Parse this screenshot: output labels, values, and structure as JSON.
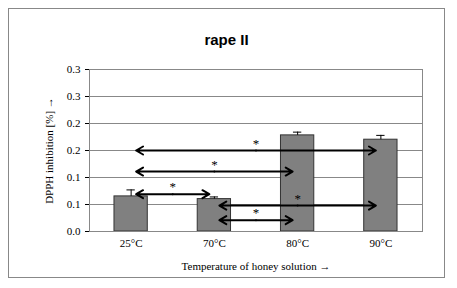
{
  "chart_data": {
    "type": "bar",
    "title": "rape  II",
    "categories": [
      "25°C",
      "70°C",
      "80°C",
      "90°C"
    ],
    "values": [
      0.065,
      0.06,
      0.178,
      0.17
    ],
    "errors": [
      0.012,
      0.004,
      0.006,
      0.008
    ],
    "color": "#808080",
    "x_label": "Temperature of honey solution",
    "y_label": "DPPH inhibition [%]",
    "ylim": [
      0,
      0.3
    ],
    "yticks": [
      {
        "value": 0,
        "label": "0.0"
      },
      {
        "value": 0.05,
        "label": "0.1"
      },
      {
        "value": 0.1,
        "label": "0.1"
      },
      {
        "value": 0.15,
        "label": "0.2"
      },
      {
        "value": 0.2,
        "label": "0.2"
      },
      {
        "value": 0.25,
        "label": "0.3"
      },
      {
        "value": 0.3,
        "label": "0.3"
      }
    ],
    "grid": true,
    "annotations": [
      {
        "from": "25°C",
        "to": "90°C",
        "text": "*"
      },
      {
        "from": "25°C",
        "to": "80°C",
        "text": "*"
      },
      {
        "from": "25°C",
        "to": "70°C",
        "text": "*"
      },
      {
        "from": "70°C",
        "to": "90°C",
        "text": "*"
      },
      {
        "from": "70°C",
        "to": "80°C",
        "text": "*"
      }
    ]
  }
}
